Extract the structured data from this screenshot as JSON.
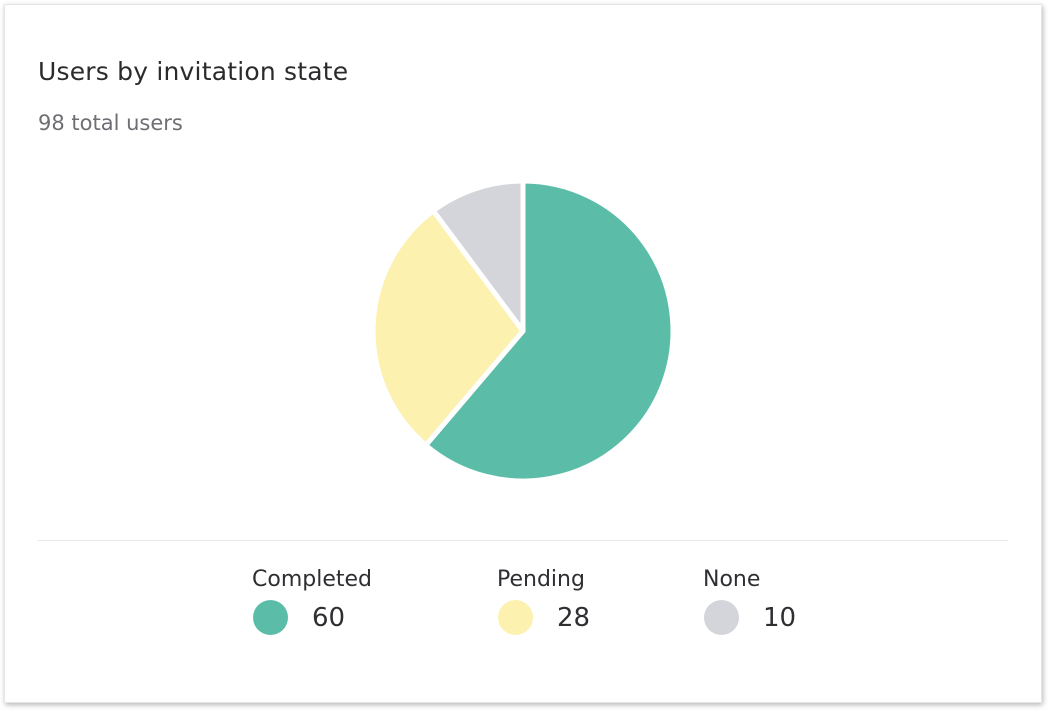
{
  "title": "Users by invitation state",
  "subtitle": "98 total users",
  "chart_data": {
    "type": "pie",
    "categories": [
      "Completed",
      "Pending",
      "None"
    ],
    "values": [
      60,
      28,
      10
    ],
    "colors": [
      "#5bbda8",
      "#fcf1ae",
      "#d4d5da"
    ],
    "legend_position": "bottom"
  },
  "legend": [
    {
      "label": "Completed",
      "value": "60",
      "color": "#5bbda8"
    },
    {
      "label": "Pending",
      "value": "28",
      "color": "#fcf1ae"
    },
    {
      "label": "None",
      "value": "10",
      "color": "#d4d5da"
    }
  ]
}
